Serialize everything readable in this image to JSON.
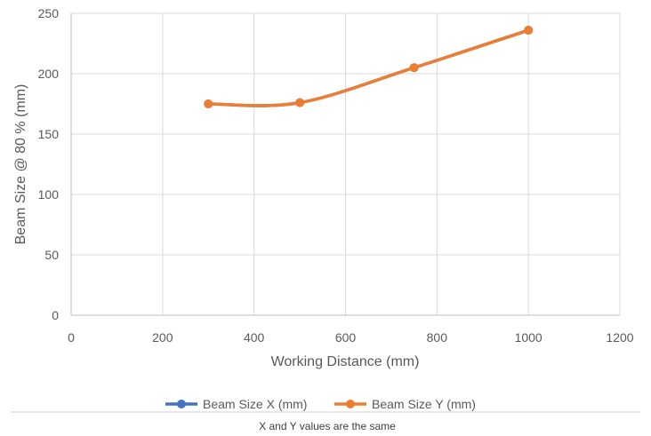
{
  "chart_data": {
    "type": "line",
    "xlabel": "Working Distance (mm)",
    "ylabel": "Beam Size @ 80 % (mm)",
    "xlim": [
      0,
      1200
    ],
    "ylim": [
      0,
      250
    ],
    "x_ticks": [
      "0",
      "200",
      "400",
      "600",
      "800",
      "1000",
      "1200"
    ],
    "y_ticks": [
      "0",
      "50",
      "100",
      "150",
      "200",
      "250"
    ],
    "grid": true,
    "legend_position": "bottom",
    "smooth": true,
    "series": [
      {
        "name": "Beam Size X (mm)",
        "color": "#4472C4",
        "x": [
          300,
          500,
          750,
          1000
        ],
        "y": [
          175,
          176,
          205,
          236
        ]
      },
      {
        "name": "Beam Size Y (mm)",
        "color": "#ED7D31",
        "x": [
          300,
          500,
          750,
          1000
        ],
        "y": [
          175,
          176,
          205,
          236
        ]
      }
    ],
    "note": "X and Y values are the same"
  }
}
